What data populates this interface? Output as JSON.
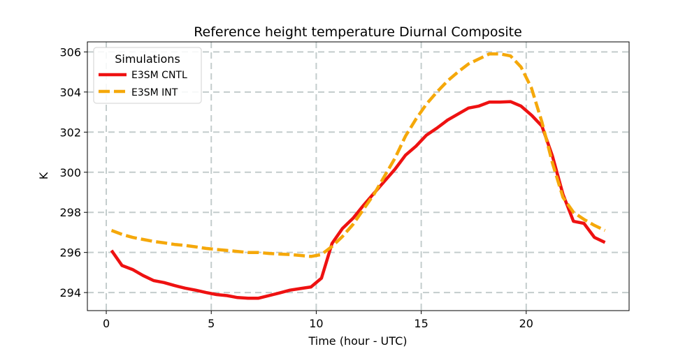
{
  "chart_data": {
    "type": "line",
    "title": "Reference height temperature Diurnal Composite",
    "xlabel": "Time (hour - UTC)",
    "ylabel": "K",
    "xlim": [
      -0.9,
      24.9
    ],
    "ylim": [
      293.1,
      306.5
    ],
    "xticks": [
      0,
      5,
      10,
      15,
      20
    ],
    "yticks": [
      294,
      296,
      298,
      300,
      302,
      304,
      306
    ],
    "grid": true,
    "legend": {
      "title": "Simulations",
      "position": "top-left"
    },
    "x": [
      0.25,
      0.75,
      1.25,
      1.75,
      2.25,
      2.75,
      3.25,
      3.75,
      4.25,
      4.75,
      5.25,
      5.75,
      6.25,
      6.75,
      7.25,
      7.75,
      8.25,
      8.75,
      9.25,
      9.75,
      10.25,
      10.75,
      11.25,
      11.75,
      12.25,
      12.75,
      13.25,
      13.75,
      14.25,
      14.75,
      15.25,
      15.75,
      16.25,
      16.75,
      17.25,
      17.75,
      18.25,
      18.75,
      19.25,
      19.75,
      20.25,
      20.75,
      21.25,
      21.75,
      22.25,
      22.75,
      23.25,
      23.75
    ],
    "series": [
      {
        "name": "E3SM CNTL",
        "color": "#ee1111",
        "style": "solid",
        "values": [
          296.1,
          295.35,
          295.15,
          294.85,
          294.6,
          294.5,
          294.35,
          294.22,
          294.12,
          294.0,
          293.9,
          293.85,
          293.75,
          293.72,
          293.72,
          293.85,
          293.98,
          294.12,
          294.2,
          294.28,
          294.72,
          296.45,
          297.2,
          297.7,
          298.35,
          298.95,
          299.55,
          300.15,
          300.85,
          301.3,
          301.85,
          302.2,
          302.6,
          302.9,
          303.2,
          303.3,
          303.5,
          303.5,
          303.52,
          303.3,
          302.85,
          302.3,
          300.8,
          298.9,
          297.55,
          297.45,
          296.75,
          296.5
        ]
      },
      {
        "name": "E3SM INT",
        "color": "#f5a80a",
        "style": "dashed",
        "values": [
          297.1,
          296.9,
          296.75,
          296.65,
          296.55,
          296.48,
          296.4,
          296.35,
          296.28,
          296.2,
          296.15,
          296.1,
          296.05,
          296.0,
          296.0,
          295.95,
          295.92,
          295.9,
          295.85,
          295.8,
          295.9,
          296.3,
          296.8,
          297.4,
          298.15,
          298.9,
          299.8,
          300.7,
          301.8,
          302.65,
          303.4,
          304.0,
          304.55,
          305.0,
          305.4,
          305.65,
          305.9,
          305.9,
          305.8,
          305.25,
          304.2,
          302.5,
          300.45,
          298.75,
          298.0,
          297.65,
          297.35,
          297.1
        ]
      }
    ]
  }
}
